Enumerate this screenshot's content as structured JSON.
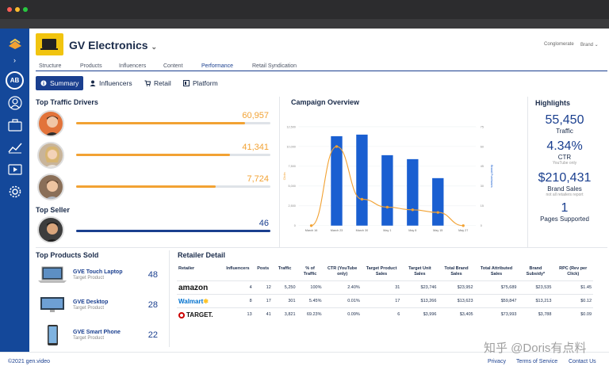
{
  "app": {
    "brand_name": "GV Electronics",
    "top_right_1": "Conglomerate",
    "top_right_2": "Brand"
  },
  "sidebar": {
    "avatar_initials": "AB",
    "icons": [
      "people-icon",
      "briefcase-icon",
      "chart-icon",
      "video-icon",
      "gear-icon"
    ]
  },
  "topnav": [
    "Structure",
    "Products",
    "Influencers",
    "Content",
    "Performance",
    "Retail Syndication"
  ],
  "topnav_active": "Performance",
  "subtabs": [
    "Summary",
    "Influencers",
    "Retail",
    "Platform"
  ],
  "top_traffic": {
    "title": "Top Traffic Drivers",
    "drivers": [
      {
        "value": "60,957",
        "fraction": 0.87
      },
      {
        "value": "41,341",
        "fraction": 0.79
      },
      {
        "value": "7,724",
        "fraction": 0.72
      }
    ]
  },
  "top_seller": {
    "title": "Top Seller",
    "value": "46",
    "fraction": 1.0
  },
  "campaign": {
    "title": "Campaign Overview"
  },
  "chart_data": {
    "type": "bar",
    "title": "Campaign Overview",
    "categories": [
      "March 16",
      "March 23",
      "March 30",
      "May 1",
      "May 8",
      "May 15",
      "May 27"
    ],
    "ylabel_left": "Clicks",
    "ylabel_right": "Brand Purchases",
    "yticks_left": [
      "0",
      "2,500",
      "5,000",
      "7,500",
      "10,000",
      "12,500"
    ],
    "yticks_right": [
      "0",
      "15",
      "30",
      "45",
      "60",
      "75"
    ],
    "ylim_left": [
      0,
      12500
    ],
    "ylim_right": [
      0,
      75
    ],
    "bars": [
      0,
      11300,
      11500,
      8900,
      8400,
      6000,
      0
    ],
    "line": [
      0,
      60,
      20,
      14,
      12,
      10,
      0
    ],
    "bar_color": "#1a5fd1",
    "line_color": "#f2a233"
  },
  "highlights": {
    "title": "Highlights",
    "items": [
      {
        "value": "55,450",
        "label": "Traffic",
        "sub": ""
      },
      {
        "value": "4.34%",
        "label": "CTR",
        "sub": "YouTube only"
      },
      {
        "value": "$210,431",
        "label": "Brand Sales",
        "sub": "not all retailers report"
      },
      {
        "value": "1",
        "label": "Pages Supported",
        "sub": ""
      }
    ]
  },
  "products": {
    "title": "Top Products Sold",
    "items": [
      {
        "name": "GVE Touch Laptop",
        "sub": "Target Product",
        "count": "48"
      },
      {
        "name": "GVE Desktop",
        "sub": "Target Product",
        "count": "28"
      },
      {
        "name": "GVE Smart Phone",
        "sub": "Target Product",
        "count": "22"
      }
    ]
  },
  "retailer_detail": {
    "title": "Retailer Detail",
    "columns": [
      "Retailer",
      "Influencers",
      "Posts",
      "Traffic",
      "% of Traffic",
      "CTR (YouTube only)",
      "Target Product Sales",
      "Target Unit Sales",
      "Total Brand Sales",
      "Total Attributed Sales",
      "Brand Subsidy*",
      "RPC (Rev per Click)"
    ],
    "rows": [
      {
        "retailer": "amazon",
        "cells": [
          "4",
          "12",
          "5,250",
          "100%",
          "2.40%",
          "31",
          "$23,746",
          "$23,952",
          "$75,689",
          "$23,535",
          "$1.45"
        ]
      },
      {
        "retailer": "Walmart",
        "cells": [
          "8",
          "17",
          "301",
          "5.45%",
          "0.01%",
          "17",
          "$13,266",
          "$13,623",
          "$59,847",
          "$13,213",
          "$0.12"
        ]
      },
      {
        "retailer": "TARGET.",
        "cells": [
          "13",
          "41",
          "3,821",
          "69.23%",
          "0.09%",
          "6",
          "$3,996",
          "$3,405",
          "$73,993",
          "$3,788",
          "$0.09"
        ]
      }
    ]
  },
  "footer": {
    "copyright": "©2021 gen.video",
    "links": [
      "Privacy",
      "Terms of Service",
      "Contact Us"
    ]
  },
  "watermark": "知乎 @Doris有点料"
}
